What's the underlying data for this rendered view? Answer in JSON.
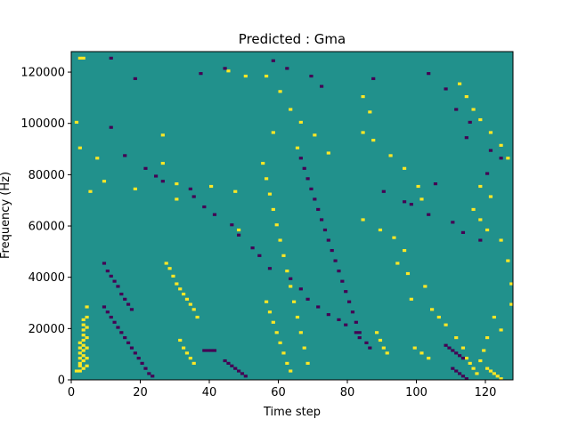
{
  "chart_data": {
    "type": "heatmap",
    "title": "Predicted : Gma",
    "xlabel": "Time step",
    "ylabel": "Frequency (Hz)",
    "xlim": [
      0,
      128
    ],
    "ylim": [
      0,
      128000
    ],
    "xticks": [
      0,
      20,
      40,
      60,
      80,
      100,
      120
    ],
    "yticks": [
      0,
      20000,
      40000,
      60000,
      80000,
      100000,
      120000
    ],
    "grid": false,
    "colors": {
      "low": "#440154",
      "mid": "#21918c",
      "high": "#fde725"
    },
    "background_level": "mid",
    "cells": {
      "high": [
        [
          1,
          3
        ],
        [
          2,
          3
        ],
        [
          2,
          5
        ],
        [
          2,
          6
        ],
        [
          2,
          8
        ],
        [
          2,
          10
        ],
        [
          2,
          12
        ],
        [
          2,
          14
        ],
        [
          3,
          4
        ],
        [
          3,
          7
        ],
        [
          3,
          9
        ],
        [
          3,
          11
        ],
        [
          3,
          13
        ],
        [
          3,
          15
        ],
        [
          3,
          17
        ],
        [
          3,
          19
        ],
        [
          3,
          21
        ],
        [
          3,
          23
        ],
        [
          4,
          5
        ],
        [
          4,
          8
        ],
        [
          4,
          12
        ],
        [
          4,
          16
        ],
        [
          4,
          20
        ],
        [
          4,
          24
        ],
        [
          4,
          28
        ],
        [
          2,
          125
        ],
        [
          3,
          125
        ],
        [
          1,
          100
        ],
        [
          2,
          90
        ],
        [
          7,
          86
        ],
        [
          9,
          77
        ],
        [
          5,
          73
        ],
        [
          18,
          74
        ],
        [
          26,
          84
        ],
        [
          26,
          95
        ],
        [
          30,
          70
        ],
        [
          30,
          76
        ],
        [
          40,
          75
        ],
        [
          47,
          73
        ],
        [
          48,
          58
        ],
        [
          27,
          45
        ],
        [
          28,
          43
        ],
        [
          29,
          40
        ],
        [
          30,
          37
        ],
        [
          31,
          35
        ],
        [
          32,
          33
        ],
        [
          33,
          31
        ],
        [
          34,
          29
        ],
        [
          35,
          27
        ],
        [
          36,
          24
        ],
        [
          31,
          15
        ],
        [
          32,
          12
        ],
        [
          33,
          10
        ],
        [
          34,
          8
        ],
        [
          35,
          6
        ],
        [
          45,
          120
        ],
        [
          50,
          118
        ],
        [
          56,
          118
        ],
        [
          60,
          112
        ],
        [
          63,
          105
        ],
        [
          66,
          100
        ],
        [
          58,
          96
        ],
        [
          65,
          90
        ],
        [
          70,
          95
        ],
        [
          74,
          88
        ],
        [
          55,
          84
        ],
        [
          56,
          78
        ],
        [
          57,
          72
        ],
        [
          58,
          66
        ],
        [
          59,
          60
        ],
        [
          60,
          54
        ],
        [
          61,
          48
        ],
        [
          62,
          42
        ],
        [
          63,
          36
        ],
        [
          64,
          30
        ],
        [
          65,
          24
        ],
        [
          66,
          18
        ],
        [
          67,
          12
        ],
        [
          68,
          6
        ],
        [
          56,
          30
        ],
        [
          57,
          26
        ],
        [
          58,
          22
        ],
        [
          59,
          18
        ],
        [
          60,
          14
        ],
        [
          61,
          10
        ],
        [
          62,
          6
        ],
        [
          63,
          3
        ],
        [
          84,
          110
        ],
        [
          86,
          104
        ],
        [
          84,
          96
        ],
        [
          87,
          93
        ],
        [
          92,
          87
        ],
        [
          96,
          82
        ],
        [
          100,
          75
        ],
        [
          101,
          70
        ],
        [
          84,
          62
        ],
        [
          89,
          58
        ],
        [
          93,
          55
        ],
        [
          96,
          50
        ],
        [
          94,
          45
        ],
        [
          97,
          41
        ],
        [
          102,
          36
        ],
        [
          98,
          31
        ],
        [
          104,
          27
        ],
        [
          106,
          24
        ],
        [
          108,
          21
        ],
        [
          111,
          16
        ],
        [
          113,
          12
        ],
        [
          114,
          8
        ],
        [
          115,
          6
        ],
        [
          116,
          4
        ],
        [
          117,
          2
        ],
        [
          88,
          18
        ],
        [
          89,
          15
        ],
        [
          90,
          12
        ],
        [
          91,
          10
        ],
        [
          99,
          12
        ],
        [
          101,
          10
        ],
        [
          103,
          8
        ],
        [
          112,
          115
        ],
        [
          114,
          110
        ],
        [
          116,
          105
        ],
        [
          118,
          101
        ],
        [
          121,
          96
        ],
        [
          124,
          91
        ],
        [
          126,
          86
        ],
        [
          118,
          75
        ],
        [
          121,
          71
        ],
        [
          116,
          66
        ],
        [
          118,
          62
        ],
        [
          120,
          58
        ],
        [
          124,
          54
        ],
        [
          126,
          46
        ],
        [
          127,
          37
        ],
        [
          127,
          29
        ],
        [
          122,
          24
        ],
        [
          124,
          19
        ],
        [
          120,
          16
        ],
        [
          119,
          11
        ],
        [
          118,
          7
        ],
        [
          120,
          4
        ],
        [
          121,
          3
        ],
        [
          122,
          2
        ],
        [
          123,
          1
        ],
        [
          124,
          0
        ]
      ],
      "low": [
        [
          11,
          125
        ],
        [
          18,
          117
        ],
        [
          37,
          119
        ],
        [
          44,
          121
        ],
        [
          58,
          124
        ],
        [
          62,
          121
        ],
        [
          69,
          118
        ],
        [
          72,
          114
        ],
        [
          87,
          117
        ],
        [
          103,
          119
        ],
        [
          108,
          113
        ],
        [
          111,
          105
        ],
        [
          115,
          100
        ],
        [
          114,
          94
        ],
        [
          121,
          89
        ],
        [
          124,
          86
        ],
        [
          120,
          80
        ],
        [
          105,
          76
        ],
        [
          90,
          73
        ],
        [
          96,
          69
        ],
        [
          98,
          68
        ],
        [
          103,
          64
        ],
        [
          110,
          61
        ],
        [
          113,
          57
        ],
        [
          118,
          54
        ],
        [
          11,
          98
        ],
        [
          15,
          87
        ],
        [
          21,
          82
        ],
        [
          24,
          79
        ],
        [
          26,
          77
        ],
        [
          34,
          74
        ],
        [
          35,
          71
        ],
        [
          38,
          67
        ],
        [
          41,
          64
        ],
        [
          46,
          60
        ],
        [
          48,
          56
        ],
        [
          52,
          51
        ],
        [
          54,
          48
        ],
        [
          57,
          43
        ],
        [
          63,
          39
        ],
        [
          66,
          35
        ],
        [
          68,
          31
        ],
        [
          71,
          28
        ],
        [
          74,
          25
        ],
        [
          77,
          23
        ],
        [
          79,
          21
        ],
        [
          82,
          18
        ],
        [
          83,
          16
        ],
        [
          85,
          14
        ],
        [
          86,
          12
        ],
        [
          9,
          45
        ],
        [
          10,
          42
        ],
        [
          11,
          40
        ],
        [
          12,
          38
        ],
        [
          13,
          36
        ],
        [
          14,
          33
        ],
        [
          15,
          31
        ],
        [
          16,
          29
        ],
        [
          17,
          27
        ],
        [
          9,
          28
        ],
        [
          10,
          26
        ],
        [
          11,
          24
        ],
        [
          12,
          22
        ],
        [
          13,
          20
        ],
        [
          14,
          18
        ],
        [
          15,
          16
        ],
        [
          16,
          14
        ],
        [
          17,
          12
        ],
        [
          18,
          10
        ],
        [
          19,
          8
        ],
        [
          20,
          6
        ],
        [
          21,
          4
        ],
        [
          22,
          2
        ],
        [
          23,
          1
        ],
        [
          38,
          11
        ],
        [
          39,
          11
        ],
        [
          40,
          11
        ],
        [
          41,
          11
        ],
        [
          44,
          7
        ],
        [
          45,
          6
        ],
        [
          46,
          5
        ],
        [
          47,
          4
        ],
        [
          48,
          3
        ],
        [
          49,
          2
        ],
        [
          50,
          1
        ],
        [
          66,
          86
        ],
        [
          67,
          82
        ],
        [
          68,
          78
        ],
        [
          69,
          74
        ],
        [
          70,
          70
        ],
        [
          71,
          66
        ],
        [
          72,
          62
        ],
        [
          73,
          58
        ],
        [
          74,
          54
        ],
        [
          75,
          50
        ],
        [
          76,
          46
        ],
        [
          77,
          42
        ],
        [
          78,
          38
        ],
        [
          79,
          34
        ],
        [
          80,
          30
        ],
        [
          81,
          26
        ],
        [
          82,
          22
        ],
        [
          83,
          18
        ],
        [
          108,
          13
        ],
        [
          109,
          12
        ],
        [
          110,
          11
        ],
        [
          111,
          10
        ],
        [
          112,
          9
        ],
        [
          113,
          8
        ],
        [
          110,
          4
        ],
        [
          111,
          3
        ],
        [
          112,
          2
        ],
        [
          113,
          1
        ],
        [
          114,
          0
        ]
      ]
    }
  }
}
